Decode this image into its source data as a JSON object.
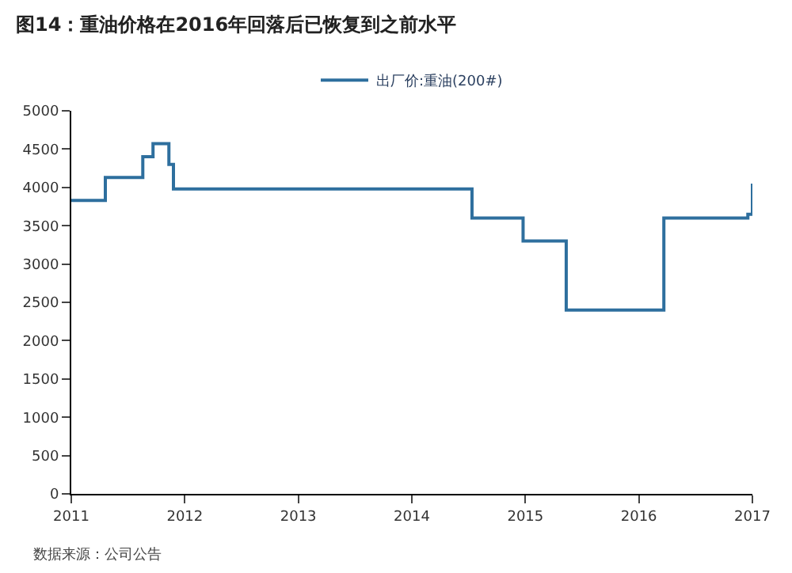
{
  "chart_data": {
    "type": "step",
    "title": "图14：重油价格在2016年回落后已恢复到之前水平",
    "x": [
      2011.0,
      2011.3,
      2011.63,
      2011.72,
      2011.86,
      2011.9,
      2014.53,
      2014.98,
      2015.36,
      2016.22,
      2016.96,
      2017.0,
      2017.0
    ],
    "series": [
      {
        "name": "出厂价:重油(200#)",
        "color": "#2e6f9e",
        "values": [
          3830,
          4130,
          4400,
          4570,
          4300,
          3980,
          3600,
          3300,
          2400,
          3600,
          3650,
          3650,
          4050
        ]
      }
    ],
    "xlim": [
      2011,
      2017
    ],
    "xticks": [
      2011,
      2012,
      2013,
      2014,
      2015,
      2016,
      2017
    ],
    "ylim": [
      0,
      5000
    ],
    "yticks": [
      0,
      500,
      1000,
      1500,
      2000,
      2500,
      3000,
      3500,
      4000,
      4500,
      5000
    ],
    "legend": "top",
    "annotations": [
      "数据来源：公司公告"
    ]
  }
}
